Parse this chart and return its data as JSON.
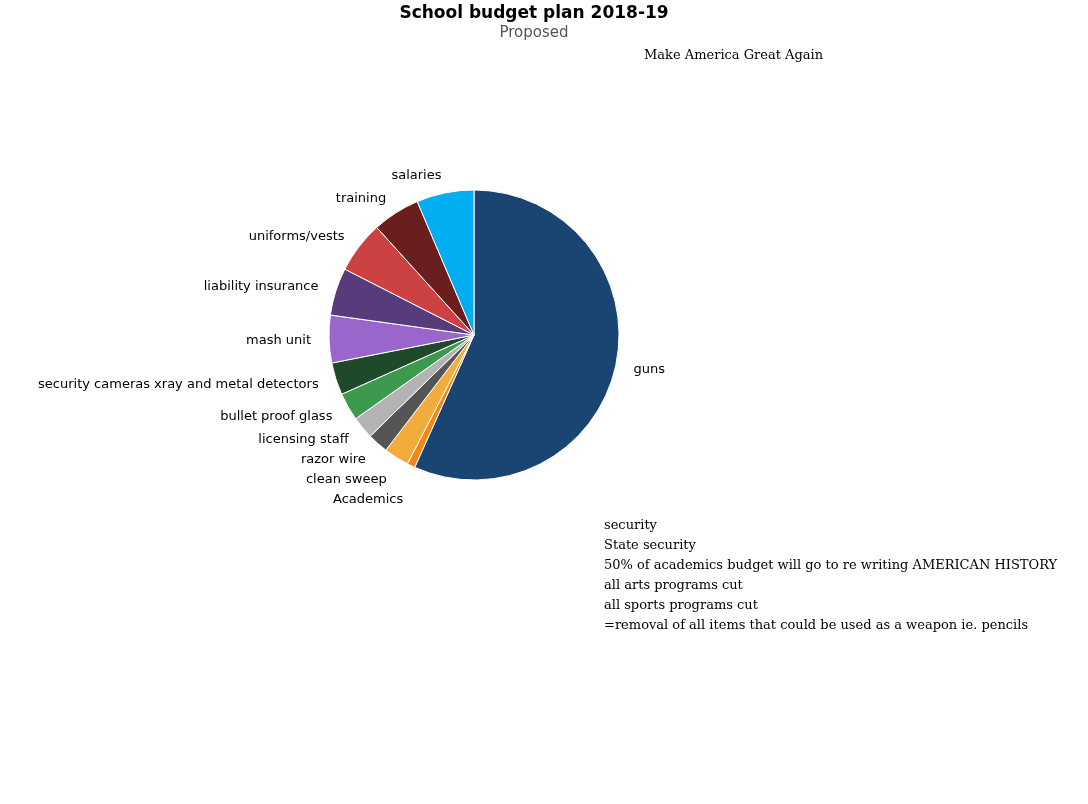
{
  "chart_data": {
    "type": "pie",
    "title": "School budget plan 2018-19",
    "subtitle": "Proposed",
    "categories": [
      "guns",
      "Academics",
      "clean sweep",
      "razor wire",
      "licensing staff",
      "bullet proof glass",
      "security cameras xray and metal detectors",
      "mash unit",
      "liability  insurance",
      "uniforms/vests",
      "training",
      "salaries"
    ],
    "values": [
      56.7,
      0.9,
      2.8,
      2.3,
      2.5,
      3.1,
      3.6,
      5.3,
      5.3,
      5.8,
      5.3,
      6.4
    ],
    "colors": [
      "#1a4472",
      "#f0871a",
      "#f2ac3b",
      "#555555",
      "#b3b3b3",
      "#3c9a4f",
      "#1f4a29",
      "#9b66cc",
      "#583b7a",
      "#cc4141",
      "#6a1e1e",
      "#00adef"
    ],
    "annotations": [
      "Make America Great Again",
      "security",
      "State security",
      "50% of academics budget will go to re writing AMERICAN HISTORY",
      "all arts programs cut",
      "all sports programs cut",
      "=removal of all items that could be used as a weapon ie. pencils"
    ]
  }
}
